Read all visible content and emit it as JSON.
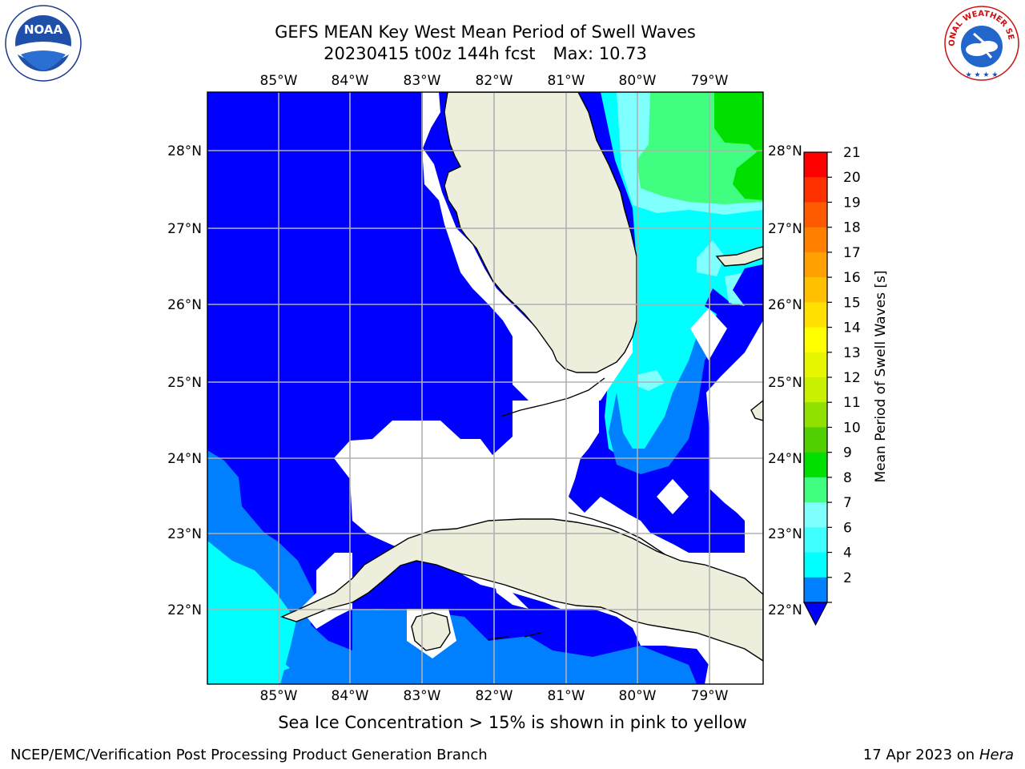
{
  "title": {
    "line1": "GEFS MEAN Key West Mean Period of Swell Waves",
    "date_line": "20230415 t00z 144h fcst",
    "max_line": "Max: 10.73"
  },
  "map": {
    "lon_labels": [
      "85°W",
      "84°W",
      "83°W",
      "82°W",
      "81°W",
      "80°W",
      "79°W"
    ],
    "lat_labels": [
      "28°N",
      "27°N",
      "26°N",
      "25°N",
      "24°N",
      "23°N",
      "22°N"
    ],
    "colors": {
      "land": "#eeeedd",
      "no_data": "#ffffff",
      "c2_4": "#0000ff",
      "c4_6": "#0080ff",
      "c6_8": "#00ffff",
      "c8_9": "#80ffff",
      "c9_10": "#40ff80",
      "c10_11": "#00e000",
      "grid": "#b0b0b0"
    }
  },
  "colorbar": {
    "label": "Mean Period of Swell Waves [s]",
    "ticks": [
      "2",
      "4",
      "6",
      "7",
      "8",
      "9",
      "10",
      "11",
      "12",
      "13",
      "14",
      "15",
      "16",
      "17",
      "18",
      "19",
      "20",
      "21"
    ],
    "ticks_display": [
      "21",
      "20",
      "19",
      "18",
      "17",
      "16",
      "15",
      "14",
      "13",
      "12",
      "11",
      "10",
      "9",
      "8",
      "7",
      "6",
      "4",
      "2"
    ],
    "colors": [
      "#ff0000",
      "#ff3000",
      "#ff5a00",
      "#ff8000",
      "#ffa000",
      "#ffc000",
      "#ffe000",
      "#ffff00",
      "#e6f500",
      "#c8f000",
      "#90e000",
      "#50d000",
      "#00e000",
      "#40ff80",
      "#80ffff",
      "#40ffff",
      "#00ffff",
      "#0080ff"
    ],
    "extend_color": "#0000ff"
  },
  "footer": {
    "note": "Sea Ice Concentration > 15% is shown in pink to yellow",
    "credit": "NCEP/EMC/Verification Post Processing Product Generation Branch",
    "date": "17 Apr 2023 on",
    "machine": "Hera"
  },
  "logos": {
    "noaa_text": "NOAA",
    "nws_ring": "NATIONAL WEATHER SERVICE"
  }
}
